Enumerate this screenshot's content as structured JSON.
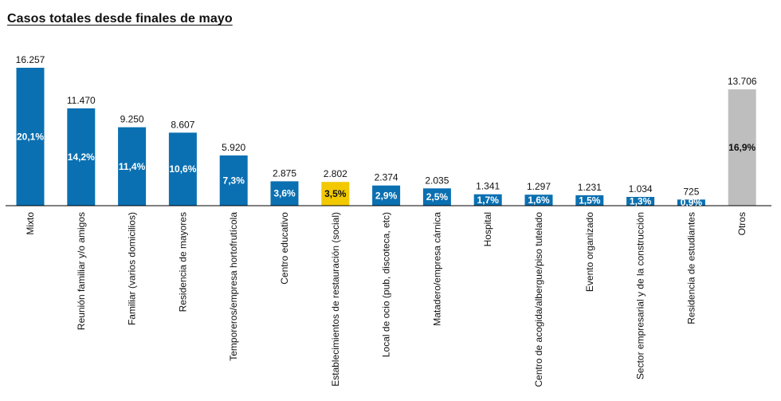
{
  "chart_data": {
    "type": "bar",
    "title": "Casos totales desde finales de mayo",
    "xlabel": "",
    "ylabel": "",
    "ylim": [
      0,
      16257
    ],
    "grid": false,
    "legend": "none",
    "categories": [
      "Mixto",
      "Reunión familiar y/o amigos",
      "Familiar (varios domicilios)",
      "Residencia de mayores",
      "Temporeros/empresa hortofrutícola",
      "Centro educativo",
      "Establecimientos de restauración (social)",
      "Local de ocio (pub, discoteca, etc)",
      "Matadero/empresa cárnica",
      "Hospital",
      "Centro de acogida/albergue/piso tutelado",
      "Evento organizado",
      "Sector empresarial y de la construcción",
      "Residencia de estudiantes",
      "Otros"
    ],
    "values": [
      16257,
      11470,
      9250,
      8607,
      5920,
      2875,
      2802,
      2374,
      2035,
      1341,
      1297,
      1231,
      1034,
      725,
      13706
    ],
    "value_labels": [
      "16.257",
      "11.470",
      "9.250",
      "8.607",
      "5.920",
      "2.875",
      "2.802",
      "2.374",
      "2.035",
      "1.341",
      "1.297",
      "1.231",
      "1.034",
      "725",
      "13.706"
    ],
    "percent_labels": [
      "20,1%",
      "14,2%",
      "11,4%",
      "10,6%",
      "7,3%",
      "3,6%",
      "3,5%",
      "2,9%",
      "2,5%",
      "1,7%",
      "1,6%",
      "1,5%",
      "1,3%",
      "0,9%",
      "16,9%"
    ],
    "colors": {
      "default": "#0A70B2",
      "highlight": "#F2C900",
      "other": "#BEBEBE",
      "baseline": "#000000"
    },
    "bar_colors": [
      "default",
      "default",
      "default",
      "default",
      "default",
      "default",
      "highlight",
      "default",
      "default",
      "default",
      "default",
      "default",
      "default",
      "default",
      "other"
    ]
  }
}
